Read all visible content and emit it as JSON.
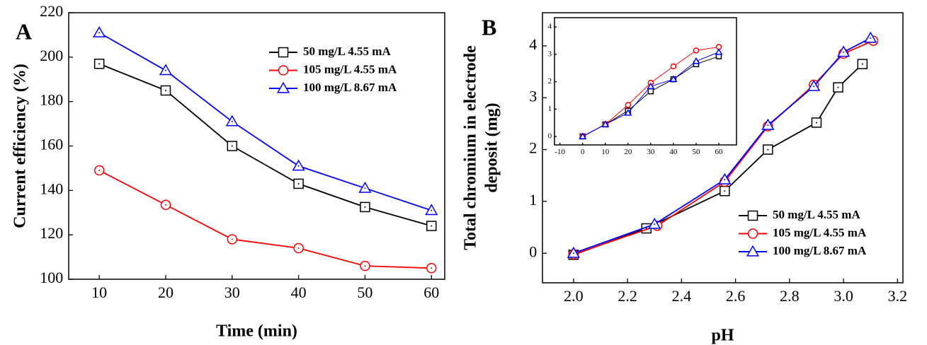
{
  "chart_data": [
    {
      "type": "line",
      "panel": "A",
      "xlabel": "Time (min)",
      "ylabel": "Current efficiency (%)",
      "x": [
        10,
        20,
        30,
        40,
        50,
        60
      ],
      "series": [
        {
          "name": "50 mg/L 4.55 mA",
          "color": "#000000",
          "marker": "square",
          "values": [
            197,
            185,
            160,
            143,
            132.5,
            124
          ]
        },
        {
          "name": "105 mg/L 4.55 mA",
          "color": "#ff0000",
          "marker": "circle",
          "values": [
            149,
            133.5,
            118,
            114,
            106,
            105
          ]
        },
        {
          "name": "100 mg/L 8.67 mA",
          "color": "#0000ff",
          "marker": "triangle",
          "values": [
            211,
            194,
            171,
            151,
            141,
            131
          ]
        }
      ],
      "xlim": [
        5.4,
        62
      ],
      "ylim": [
        100,
        220
      ],
      "xticks": [
        10,
        20,
        30,
        40,
        50,
        60
      ],
      "yticks": [
        100,
        120,
        140,
        160,
        180,
        200,
        220
      ],
      "legend": "upper right"
    },
    {
      "type": "line",
      "panel": "B",
      "xlabel": "pH",
      "ylabel": [
        "Total chromium in electrode",
        "deposit (mg)"
      ],
      "series": [
        {
          "name": "50 mg/L 4.55 mA",
          "color": "#000000",
          "marker": "square",
          "x": [
            2.0,
            2.27,
            2.56,
            2.72,
            2.9,
            2.98,
            3.07
          ],
          "values": [
            -0.03,
            0.48,
            1.2,
            2.0,
            2.52,
            3.2,
            3.65
          ]
        },
        {
          "name": "105 mg/L 4.55 mA",
          "color": "#ff0000",
          "marker": "circle",
          "x": [
            2.0,
            2.31,
            2.56,
            2.72,
            2.89,
            3.0,
            3.11
          ],
          "values": [
            -0.02,
            0.53,
            1.38,
            2.45,
            3.25,
            3.85,
            4.1
          ]
        },
        {
          "name": "100 mg/L 8.67 mA",
          "color": "#0000ff",
          "marker": "triangle",
          "x": [
            2.0,
            2.3,
            2.56,
            2.72,
            2.89,
            3.0,
            3.1
          ],
          "values": [
            0.0,
            0.56,
            1.42,
            2.47,
            3.22,
            3.88,
            4.15
          ]
        }
      ],
      "xlim": [
        1.885,
        3.22
      ],
      "ylim": [
        -0.57,
        4.64
      ],
      "xticks": [
        {
          "value": 2.0,
          "label": "2.0"
        },
        2.2,
        2.4,
        2.6,
        2.8,
        {
          "value": 3.0,
          "label": "3.0"
        },
        3.2
      ],
      "yticks": [
        0,
        1,
        2,
        3,
        4
      ],
      "legend": "lower right"
    },
    {
      "type": "line",
      "panel": "B-inset",
      "x": [
        0,
        10,
        20,
        30,
        40,
        50,
        60
      ],
      "series": [
        {
          "color": "#000000",
          "marker": "square",
          "values": [
            0,
            0.44,
            0.94,
            1.65,
            2.09,
            2.64,
            2.93
          ]
        },
        {
          "color": "#ff0000",
          "marker": "circle",
          "values": [
            0,
            0.44,
            1.15,
            1.96,
            2.56,
            3.14,
            3.27
          ]
        },
        {
          "color": "#0000ff",
          "marker": "triangle",
          "values": [
            0,
            0.44,
            0.86,
            1.83,
            2.09,
            2.75,
            3.08
          ]
        }
      ],
      "xlim": [
        -12.4,
        67.8
      ],
      "ylim": [
        -0.31,
        4.34
      ],
      "xticks": [
        -10,
        0,
        10,
        20,
        30,
        40,
        50,
        60
      ],
      "yticks": [
        0,
        1,
        2,
        3,
        4
      ]
    }
  ]
}
